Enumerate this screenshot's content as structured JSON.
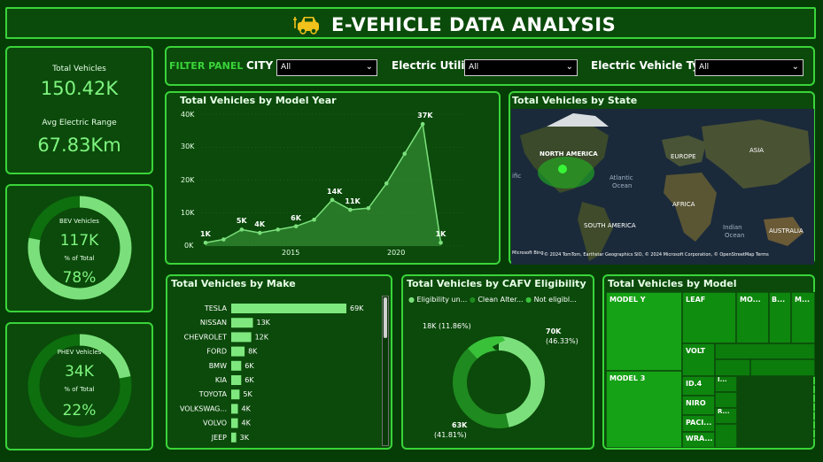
{
  "header": {
    "title": "E-VEHICLE DATA ANALYSIS"
  },
  "kpis": {
    "total_vehicles_label": "Total Vehicles",
    "total_vehicles_value": "150.42K",
    "avg_range_label": "Avg Electric Range",
    "avg_range_value": "67.83Km"
  },
  "bev": {
    "label": "BEV Vehicles",
    "value": "117K",
    "pct_label": "% of Total",
    "pct": "78%",
    "fraction": 0.78
  },
  "phev": {
    "label": "PHEV Vehicles",
    "value": "34K",
    "pct_label": "% of Total",
    "pct": "22%",
    "fraction": 0.22
  },
  "filter": {
    "panel_label": "FILTER PANEL",
    "city_label": "CITY",
    "city_value": "All",
    "utility_label": "Electric Utility",
    "utility_value": "All",
    "type_label": "Electric Vehicle Type",
    "type_value": "All"
  },
  "year_chart": {
    "title": "Total Vehicles by Model Year",
    "y_ticks": [
      "40K",
      "30K",
      "20K",
      "10K",
      "0K"
    ],
    "x_ticks": [
      "2015",
      "2020"
    ]
  },
  "state_map": {
    "title": "Total Vehicles by State",
    "labels": [
      "NORTH AMERICA",
      "EUROPE",
      "ASIA",
      "Atlantic",
      "Ocean",
      "AFRICA",
      "SOUTH AMERICA",
      "Indian",
      "Ocean",
      "AUSTRALIA",
      "ific"
    ],
    "attribution": "© 2024 TomTom, Earthstar Geographics SIO, © 2024 Microsoft Corporation, © OpenStreetMap  Terms",
    "logo": "Microsoft Bing"
  },
  "make_chart": {
    "title": "Total Vehicles by Make"
  },
  "cafv": {
    "title": "Total Vehicles by CAFV Eligibility",
    "legend": [
      "Eligibility un...",
      "Clean Alter...",
      "Not eligibl..."
    ],
    "label_70k": "70K",
    "label_70k_pct": "(46.33%)",
    "label_63k": "63K",
    "label_63k_pct": "(41.81%)",
    "label_18k": "18K (11.86%)"
  },
  "model_tree": {
    "title": "Total Vehicles by Model",
    "labels": {
      "model_y": "MODEL Y",
      "model_3": "MODEL 3",
      "leaf": "LEAF",
      "mo": "MO...",
      "b": "B...",
      "m": "M...",
      "volt": "VOLT",
      "id4": "ID.4",
      "niro": "NIRO",
      "paci": "PACI...",
      "wra": "WRA...",
      "i": "I...",
      "r": "R..."
    }
  },
  "chart_data": [
    {
      "type": "area",
      "title": "Total Vehicles by Model Year",
      "xlabel": "",
      "ylabel": "",
      "ylim": [
        0,
        40000
      ],
      "x": [
        2010,
        2011,
        2012,
        2013,
        2014,
        2015,
        2016,
        2017,
        2018,
        2019,
        2020,
        2021,
        2022,
        2023,
        2024
      ],
      "values": [
        1000,
        2000,
        5000,
        4000,
        5000,
        6000,
        8000,
        14000,
        11000,
        11500,
        19000,
        28000,
        37000,
        1000,
        null
      ],
      "data_labels": [
        {
          "x": 2010,
          "text": "1K"
        },
        {
          "x": 2012,
          "text": "5K"
        },
        {
          "x": 2013,
          "text": "4K"
        },
        {
          "x": 2015,
          "text": "6K"
        },
        {
          "x": 2017,
          "text": "14K"
        },
        {
          "x": 2018,
          "text": "11K"
        },
        {
          "x": 2022,
          "text": "37K"
        },
        {
          "x": 2023,
          "text": "1K"
        }
      ],
      "color": "#3fa03f"
    },
    {
      "type": "bar",
      "title": "Total Vehicles by Make",
      "categories": [
        "TESLA",
        "NISSAN",
        "CHEVROLET",
        "FORD",
        "BMW",
        "KIA",
        "TOYOTA",
        "VOLKSWAG...",
        "VOLVO",
        "JEEP"
      ],
      "values": [
        69,
        13,
        12,
        8,
        6,
        6,
        5,
        4,
        4,
        3
      ],
      "labels": [
        "69K",
        "13K",
        "12K",
        "8K",
        "6K",
        "6K",
        "5K",
        "4K",
        "4K",
        "3K"
      ],
      "xlim": [
        0,
        69
      ],
      "color": "#7ee87e"
    },
    {
      "type": "pie",
      "title": "Total Vehicles by CAFV Eligibility",
      "categories": [
        "Eligibility un...",
        "Clean Alter...",
        "Not eligibl..."
      ],
      "values": [
        70,
        63,
        18
      ],
      "percent": [
        46.33,
        41.81,
        11.86
      ],
      "colors": [
        "#7be07b",
        "#1f8a1f",
        "#39c139"
      ]
    }
  ],
  "colors": {
    "accent": "#3ad43a",
    "panel": "#0b4a0b",
    "kpi_value": "#7ff57f"
  }
}
